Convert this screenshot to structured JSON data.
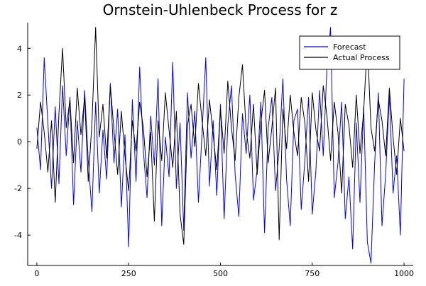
{
  "chart_data": {
    "type": "line",
    "title": "Ornstein-Uhlenbeck Process for z",
    "xlabel": "",
    "ylabel": "",
    "xlim": [
      -25,
      1025
    ],
    "ylim": [
      -5.3,
      5.1
    ],
    "x_ticks": [
      0,
      250,
      500,
      750,
      1000
    ],
    "x_tick_labels": [
      "0",
      "250",
      "500",
      "750",
      "1000"
    ],
    "y_ticks": [
      4,
      2,
      0,
      -2,
      -4
    ],
    "y_tick_labels": [
      "4",
      "2",
      "0",
      "-2",
      "-4"
    ],
    "grid": false,
    "legend_position": "top-right",
    "series": [
      {
        "name": "Forecast",
        "color": "#0000ff",
        "x": [
          0,
          10,
          20,
          30,
          40,
          50,
          60,
          70,
          80,
          90,
          100,
          110,
          120,
          130,
          140,
          150,
          160,
          170,
          180,
          190,
          200,
          210,
          220,
          230,
          240,
          250,
          260,
          270,
          280,
          290,
          300,
          310,
          320,
          330,
          340,
          350,
          360,
          370,
          380,
          390,
          400,
          410,
          420,
          430,
          440,
          450,
          460,
          470,
          480,
          490,
          500,
          510,
          520,
          530,
          540,
          550,
          560,
          570,
          580,
          590,
          600,
          610,
          620,
          630,
          640,
          650,
          660,
          670,
          680,
          690,
          700,
          710,
          720,
          730,
          740,
          750,
          760,
          770,
          780,
          790,
          800,
          810,
          820,
          830,
          840,
          850,
          860,
          870,
          880,
          890,
          900,
          910,
          920,
          930,
          940,
          950,
          960,
          970,
          980,
          990,
          1000
        ],
        "y": [
          0.6,
          -1.2,
          3.6,
          0.8,
          -2.0,
          1.5,
          -1.8,
          2.4,
          -0.6,
          1.9,
          -2.7,
          0.9,
          -1.3,
          2.2,
          -0.8,
          -3.0,
          1.7,
          -2.2,
          0.5,
          -1.6,
          2.5,
          -0.9,
          1.4,
          -2.8,
          0.3,
          -4.5,
          1.8,
          -1.7,
          3.2,
          -0.4,
          -2.4,
          1.1,
          -1.0,
          2.7,
          -3.6,
          0.2,
          -1.5,
          3.4,
          -2.0,
          0.8,
          -3.8,
          2.1,
          -0.7,
          1.3,
          -2.6,
          0.4,
          3.6,
          -1.9,
          0.9,
          -2.3,
          1.6,
          -3.3,
          0.7,
          2.4,
          -1.4,
          -3.2,
          1.2,
          -0.5,
          2.0,
          -2.5,
          -1.2,
          1.7,
          -3.9,
          0.6,
          1.9,
          -2.1,
          -0.3,
          2.7,
          -1.6,
          -3.6,
          0.9,
          1.4,
          -2.9,
          -0.8,
          1.9,
          -3.1,
          -1.2,
          2.2,
          -0.6,
          3.2,
          4.9,
          -2.4,
          -0.9,
          1.7,
          -3.3,
          -1.5,
          -4.6,
          0.8,
          -2.6,
          1.5,
          -4.3,
          -5.2,
          -0.9,
          2.1,
          -3.6,
          -1.4,
          2.0,
          -2.2,
          -0.6,
          -4.0,
          2.7
        ]
      },
      {
        "name": "Actual Process",
        "color": "#000000",
        "x": [
          0,
          10,
          20,
          30,
          40,
          50,
          60,
          70,
          80,
          90,
          100,
          110,
          120,
          130,
          140,
          150,
          160,
          170,
          180,
          190,
          200,
          210,
          220,
          230,
          240,
          250,
          260,
          270,
          280,
          290,
          300,
          310,
          320,
          330,
          340,
          350,
          360,
          370,
          380,
          390,
          400,
          410,
          420,
          430,
          440,
          450,
          460,
          470,
          480,
          490,
          500,
          510,
          520,
          530,
          540,
          550,
          560,
          570,
          580,
          590,
          600,
          610,
          620,
          630,
          640,
          650,
          660,
          670,
          680,
          690,
          700,
          710,
          720,
          730,
          740,
          750,
          760,
          770,
          780,
          790,
          800,
          810,
          820,
          830,
          840,
          850,
          860,
          870,
          880,
          890,
          900,
          910,
          920,
          930,
          940,
          950,
          960,
          970,
          980,
          990,
          1000
        ],
        "y": [
          -0.3,
          1.7,
          0.4,
          -1.3,
          0.9,
          -2.6,
          1.2,
          4.0,
          0.6,
          1.8,
          -0.9,
          2.3,
          0.3,
          1.9,
          -1.7,
          0.8,
          4.9,
          0.2,
          1.6,
          -0.7,
          2.4,
          0.5,
          -1.4,
          1.3,
          -0.6,
          -2.1,
          0.9,
          -0.4,
          1.7,
          0.6,
          -1.5,
          0.4,
          -3.4,
          0.9,
          -0.8,
          2.1,
          0.5,
          -1.1,
          1.3,
          -3.1,
          -4.4,
          0.7,
          1.6,
          -0.2,
          2.5,
          0.9,
          -0.6,
          1.8,
          0.3,
          -1.2,
          1.4,
          -0.5,
          2.6,
          0.6,
          -0.8,
          1.9,
          3.3,
          0.5,
          -0.7,
          1.6,
          -1.4,
          0.8,
          2.2,
          -0.9,
          0.6,
          2.3,
          -4.2,
          1.4,
          -0.3,
          2.0,
          0.4,
          -0.6,
          1.9,
          0.8,
          -1.7,
          2.1,
          0.5,
          -0.4,
          2.4,
          1.1,
          -0.8,
          1.7,
          0.4,
          -2.2,
          1.6,
          0.7,
          -1.1,
          2.0,
          -0.5,
          1.3,
          4.3,
          0.6,
          -0.4,
          1.8,
          0.9,
          -0.6,
          2.3,
          0.2,
          -1.4,
          1.0,
          -0.4
        ]
      }
    ]
  }
}
